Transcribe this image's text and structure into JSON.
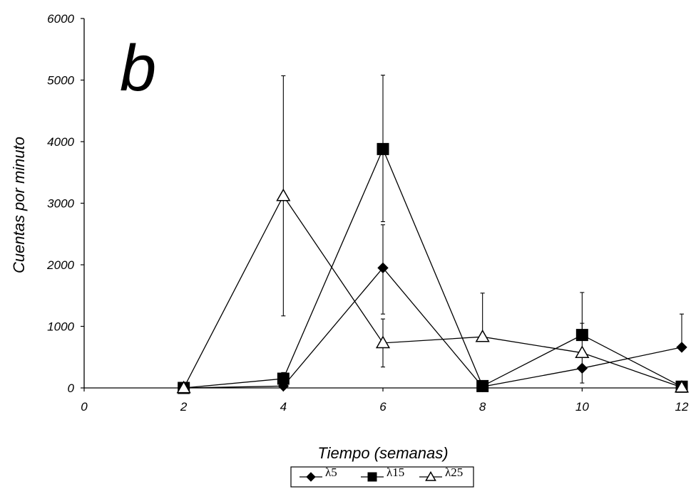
{
  "chart_data": {
    "type": "line",
    "panel_label": "b",
    "xlabel": "Tiempo (semanas)",
    "ylabel": "Cuentas por minuto",
    "xlim": [
      0,
      12
    ],
    "ylim": [
      0,
      6000
    ],
    "xticks": [
      0,
      2,
      4,
      6,
      8,
      10,
      12
    ],
    "yticks": [
      0,
      1000,
      2000,
      3000,
      4000,
      5000,
      6000
    ],
    "grid": false,
    "legend_position": "bottom-center",
    "x": [
      2,
      4,
      6,
      8,
      10,
      12
    ],
    "series": [
      {
        "name": "λ5",
        "marker": "diamond",
        "color": "#000000",
        "values": [
          0,
          30,
          1950,
          20,
          320,
          660
        ],
        "error_upper": [
          null,
          null,
          2650,
          null,
          1050,
          1200
        ],
        "error_lower": [
          null,
          null,
          1200,
          null,
          80,
          null
        ]
      },
      {
        "name": "λ15",
        "marker": "square",
        "color": "#000000",
        "values": [
          0,
          150,
          3880,
          30,
          860,
          20
        ],
        "error_upper": [
          null,
          250,
          5080,
          null,
          1550,
          null
        ],
        "error_lower": [
          null,
          null,
          2700,
          null,
          null,
          null
        ]
      },
      {
        "name": "λ25",
        "marker": "triangle",
        "color": "#000000",
        "values": [
          0,
          3120,
          730,
          830,
          570,
          10
        ],
        "error_upper": [
          null,
          5070,
          1120,
          1540,
          null,
          null
        ],
        "error_lower": [
          null,
          1170,
          340,
          null,
          null,
          null
        ]
      }
    ]
  }
}
